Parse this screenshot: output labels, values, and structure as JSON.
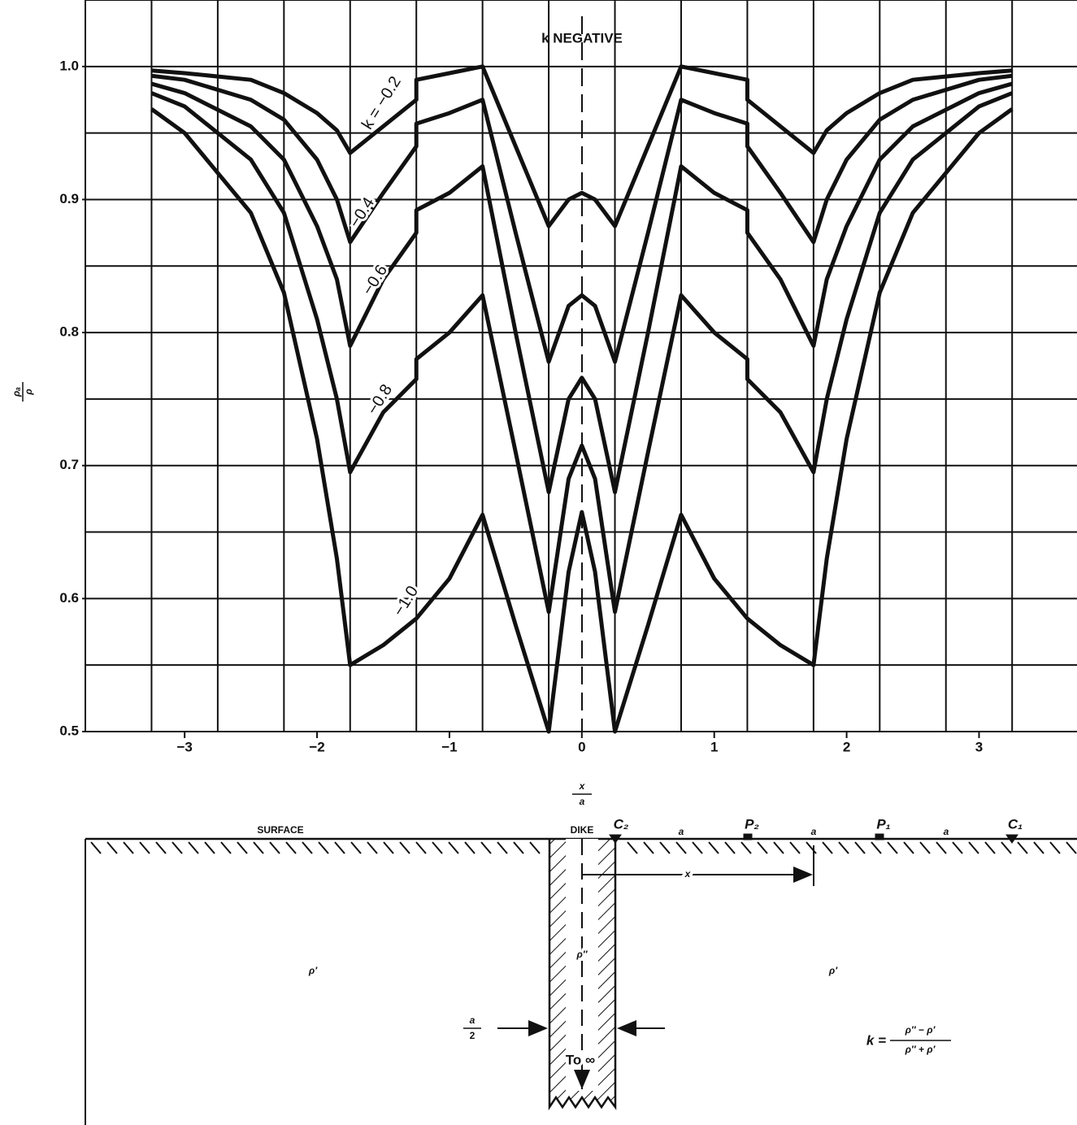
{
  "chart_data": {
    "type": "line",
    "annotations": [
      "k NEGATIVE"
    ],
    "y_label": {
      "numerator": "ρₐ",
      "denominator": "ρ"
    },
    "x_label": {
      "numerator": "x",
      "denominator": "a"
    },
    "x": [
      -3.25,
      -3,
      -2.5,
      -2.25,
      -2,
      -1.85,
      -1.75,
      -1.5,
      -1.25,
      -1.25,
      -1,
      -0.75,
      -0.5,
      -0.25,
      -0.1,
      0,
      0.1,
      0.25,
      0.5,
      0.75,
      1,
      1.25,
      1.25,
      1.5,
      1.75,
      1.85,
      2,
      2.25,
      2.5,
      3,
      3.25
    ],
    "series": [
      {
        "name": "k = −0.2",
        "color": "#111111",
        "values": [
          0.997,
          0.995,
          0.99,
          0.98,
          0.965,
          0.952,
          0.935,
          0.955,
          0.975,
          0.99,
          0.995,
          1.0,
          0.94,
          0.88,
          0.9,
          0.905,
          0.9,
          0.88,
          0.94,
          1.0,
          0.995,
          0.99,
          0.975,
          0.955,
          0.935,
          0.952,
          0.965,
          0.98,
          0.99,
          0.995,
          0.997
        ]
      },
      {
        "name": "−0.4",
        "color": "#111111",
        "values": [
          0.993,
          0.99,
          0.975,
          0.96,
          0.93,
          0.9,
          0.868,
          0.905,
          0.94,
          0.957,
          0.965,
          0.975,
          0.875,
          0.778,
          0.82,
          0.828,
          0.82,
          0.778,
          0.875,
          0.975,
          0.965,
          0.957,
          0.94,
          0.905,
          0.868,
          0.9,
          0.93,
          0.96,
          0.975,
          0.99,
          0.993
        ]
      },
      {
        "name": "−0.6",
        "color": "#111111",
        "values": [
          0.987,
          0.98,
          0.955,
          0.93,
          0.88,
          0.84,
          0.79,
          0.84,
          0.875,
          0.892,
          0.905,
          0.925,
          0.8,
          0.68,
          0.75,
          0.766,
          0.75,
          0.68,
          0.8,
          0.925,
          0.905,
          0.892,
          0.875,
          0.84,
          0.79,
          0.84,
          0.88,
          0.93,
          0.955,
          0.98,
          0.987
        ]
      },
      {
        "name": "−0.8",
        "color": "#111111",
        "values": [
          0.98,
          0.97,
          0.93,
          0.89,
          0.81,
          0.75,
          0.695,
          0.74,
          0.765,
          0.78,
          0.8,
          0.828,
          0.71,
          0.59,
          0.69,
          0.715,
          0.69,
          0.59,
          0.71,
          0.828,
          0.8,
          0.78,
          0.765,
          0.74,
          0.695,
          0.75,
          0.81,
          0.89,
          0.93,
          0.97,
          0.98
        ]
      },
      {
        "name": "−1.0",
        "color": "#111111",
        "values": [
          0.968,
          0.95,
          0.89,
          0.83,
          0.72,
          0.63,
          0.55,
          0.565,
          0.585,
          0.585,
          0.615,
          0.663,
          0.58,
          0.5,
          0.62,
          0.665,
          0.62,
          0.5,
          0.58,
          0.663,
          0.615,
          0.585,
          0.585,
          0.565,
          0.55,
          0.63,
          0.72,
          0.83,
          0.89,
          0.95,
          0.968
        ]
      }
    ],
    "xlim": [
      -3.75,
      3.74
    ],
    "ylim": [
      0.5,
      1.05
    ],
    "xticks": [
      {
        "value": -3,
        "label": "−3"
      },
      {
        "value": -2,
        "label": "−2"
      },
      {
        "value": -1,
        "label": "−1"
      },
      0,
      1,
      2,
      3
    ],
    "yticks": [
      0.5,
      0.6,
      0.7,
      0.8,
      0.9,
      {
        "value": 1,
        "label": "1.0"
      }
    ],
    "xgrid": [
      -3.25,
      -2.75,
      -2.25,
      -1.75,
      -1.25,
      -0.75,
      -0.25,
      0.25,
      0.75,
      1.25,
      1.75,
      2.25,
      2.75,
      3.25
    ],
    "ygrid": [
      0.55,
      0.6,
      0.65,
      0.7,
      0.75,
      0.8,
      0.85,
      0.9,
      0.95,
      1,
      1.05
    ],
    "grid": true
  },
  "diagram": {
    "surface": "SURFACE",
    "dike": "DIKE",
    "c2": "C₂",
    "p2": "P₂",
    "p1": "P₁",
    "c1": "C₁",
    "spacing": [
      "a",
      "a",
      "a"
    ],
    "x": "x",
    "rho_left": "ρ′",
    "rho_dike": "ρ″",
    "rho_right": "ρ′",
    "half_width": {
      "numerator": "a",
      "denominator": "2"
    },
    "depth": "To ∞",
    "formula": {
      "lhs": "k =",
      "numerator": "ρ″ − ρ′",
      "denominator": "ρ″ + ρ′"
    }
  }
}
